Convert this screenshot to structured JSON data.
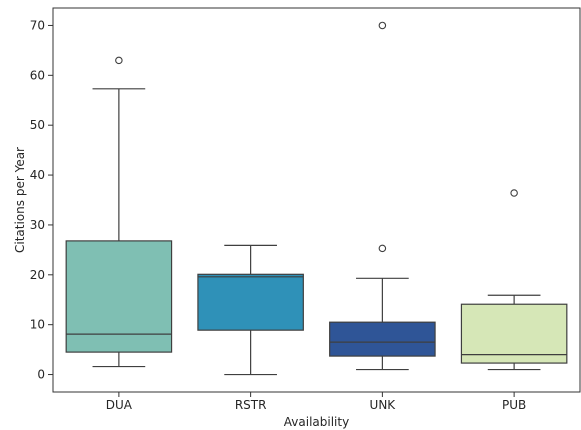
{
  "chart_data": {
    "type": "box",
    "xlabel": "Availability",
    "ylabel": "Citations per Year",
    "ylim": [
      -3.5,
      73.5
    ],
    "yticks": [
      0,
      10,
      20,
      30,
      40,
      50,
      60,
      70
    ],
    "grid": false,
    "categories": [
      "DUA",
      "RSTR",
      "UNK",
      "PUB"
    ],
    "boxes": [
      {
        "name": "DUA",
        "whisker_low": 1.6,
        "q1": 4.5,
        "median": 8.1,
        "q3": 26.8,
        "whisker_high": 57.3,
        "outliers": [
          63.0
        ],
        "color": "#7fbfb3"
      },
      {
        "name": "RSTR",
        "whisker_low": 0.0,
        "q1": 8.9,
        "median": 19.6,
        "q3": 20.1,
        "whisker_high": 25.9,
        "outliers": [],
        "color": "#2f91b8"
      },
      {
        "name": "UNK",
        "whisker_low": 1.0,
        "q1": 3.7,
        "median": 6.5,
        "q3": 10.5,
        "whisker_high": 19.3,
        "outliers": [
          25.3,
          70.0
        ],
        "color": "#2f5597"
      },
      {
        "name": "PUB",
        "whisker_low": 1.0,
        "q1": 2.3,
        "median": 4.0,
        "q3": 14.1,
        "whisker_high": 15.9,
        "outliers": [
          36.4
        ],
        "color": "#d6e7b7"
      }
    ]
  }
}
